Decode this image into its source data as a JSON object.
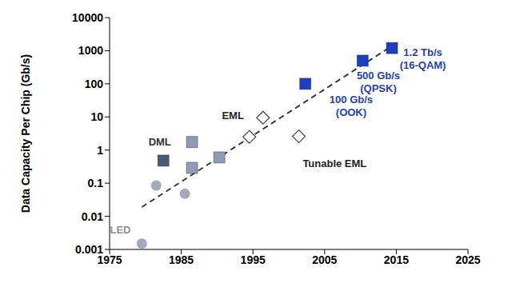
{
  "chart_data": {
    "type": "scatter",
    "log": "y",
    "y_label": "Data Capacity Per Chip (Gb/s)",
    "xlim": [
      1975,
      2025
    ],
    "xticks": [
      1975,
      1985,
      1995,
      2005,
      2015,
      2025
    ],
    "ylim": [
      0.001,
      10000
    ],
    "yticks": [
      0.001,
      0.01,
      0.1,
      1,
      10,
      100,
      1000,
      10000
    ],
    "series": [
      {
        "color": "#a3aab8",
        "marker": "circle",
        "x": [
          1979.5,
          1981.5,
          1985.5
        ],
        "values": [
          0.0015,
          0.085,
          0.048
        ]
      },
      {
        "color": "#4b5a78",
        "marker": "square",
        "x": [
          1982.5
        ],
        "values": [
          0.48
        ]
      },
      {
        "color": "#8e9bb9",
        "marker": "square",
        "x": [
          1986.5,
          1986.5,
          1990.3
        ],
        "values": [
          1.75,
          0.29,
          0.6
        ]
      },
      {
        "color": "#ffffff",
        "marker": "diamond",
        "x": [
          1994.5,
          1996.4,
          2001.4
        ],
        "values": [
          2.5,
          9.5,
          2.6
        ]
      },
      {
        "color": "#1f3fc0",
        "marker": "square",
        "x": [
          2002.3,
          2010.3,
          2014.4
        ],
        "values": [
          100,
          500,
          1200
        ]
      }
    ],
    "trend_line": {
      "color": "#333333",
      "line_style": "dashed",
      "x": [
        1979.5,
        2015.3
      ],
      "values": [
        0.019,
        1860
      ]
    },
    "annotations": [
      {
        "lines": [
          "LED"
        ],
        "x": 1976.5,
        "y": 0.0035,
        "color": "#8a8f99"
      },
      {
        "lines": [
          "DML"
        ],
        "x": 1982,
        "y": 1.66,
        "color": "#333333"
      },
      {
        "lines": [
          "EML"
        ],
        "x": 1992.2,
        "y": 10,
        "color": "#222222"
      },
      {
        "lines": [
          "Tunable EML"
        ],
        "x": 2006.4,
        "y": 0.36,
        "color": "#222222"
      },
      {
        "lines": [
          "100 Gb/s",
          "(OOK)"
        ],
        "x": 2008.7,
        "y": 20,
        "color": "#1f3fb0"
      },
      {
        "lines": [
          "500 Gb/s",
          "(QPSK)"
        ],
        "x": 2012.5,
        "y": 105,
        "color": "#1f3fb0"
      },
      {
        "lines": [
          "1.2 Tb/s",
          "(16-QAM)"
        ],
        "x": 2018.7,
        "y": 540,
        "color": "#1f3fb0"
      }
    ]
  }
}
